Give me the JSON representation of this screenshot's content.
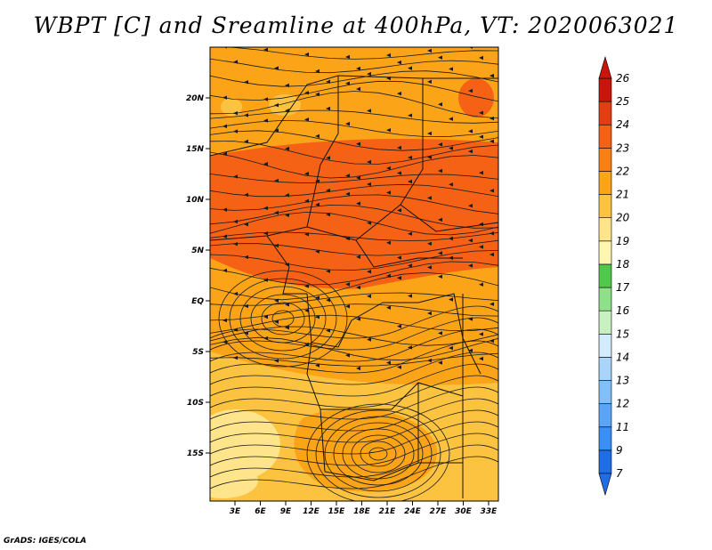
{
  "title": "WBPT [C] and Sreamline at 400hPa, VT: 2020063021",
  "credit": "GrADS: IGES/COLA",
  "map": {
    "lat_labels": [
      "20N",
      "15N",
      "10N",
      "5N",
      "EQ",
      "5S",
      "10S",
      "15S"
    ],
    "lon_labels": [
      "3E",
      "6E",
      "9E",
      "12E",
      "15E",
      "18E",
      "21E",
      "24E",
      "27E",
      "30E",
      "33E"
    ],
    "regions": [
      {
        "name": "band-20n",
        "color": "#fba418"
      },
      {
        "name": "band-10n",
        "color": "#f56216"
      },
      {
        "name": "band-eq",
        "color": "#fba418"
      },
      {
        "name": "band-10s",
        "color": "#fcc340"
      },
      {
        "name": "cyclone-15s",
        "color": "#fba418"
      }
    ]
  },
  "colorbar": {
    "labels": [
      "7",
      "9",
      "11",
      "12",
      "13",
      "14",
      "15",
      "16",
      "17",
      "18",
      "19",
      "20",
      "21",
      "22",
      "23",
      "24",
      "25",
      "26"
    ],
    "colors": [
      "#1f6ee6",
      "#3a8ff5",
      "#5aa5f8",
      "#82bff9",
      "#a9d5fb",
      "#d3ecfd",
      "#c9f0c0",
      "#8fe08a",
      "#4fc84c",
      "#fff6b0",
      "#fee48a",
      "#fcc340",
      "#fba418",
      "#f87f14",
      "#f56216",
      "#e33d12",
      "#c8160d"
    ]
  }
}
